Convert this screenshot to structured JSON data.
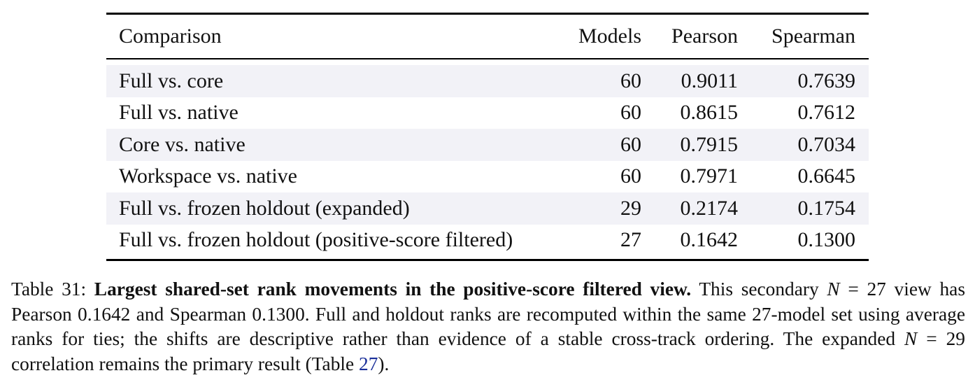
{
  "table": {
    "headers": {
      "comparison": "Comparison",
      "models": "Models",
      "pearson": "Pearson",
      "spearman": "Spearman"
    },
    "rows": [
      {
        "comparison": "Full vs. core",
        "models": "60",
        "pearson": "0.9011",
        "spearman": "0.7639"
      },
      {
        "comparison": "Full vs. native",
        "models": "60",
        "pearson": "0.8615",
        "spearman": "0.7612"
      },
      {
        "comparison": "Core vs. native",
        "models": "60",
        "pearson": "0.7915",
        "spearman": "0.7034"
      },
      {
        "comparison": "Workspace vs. native",
        "models": "60",
        "pearson": "0.7971",
        "spearman": "0.6645"
      },
      {
        "comparison": "Full vs. frozen holdout (expanded)",
        "models": "29",
        "pearson": "0.2174",
        "spearman": "0.1754"
      },
      {
        "comparison": "Full vs. frozen holdout (positive-score filtered)",
        "models": "27",
        "pearson": "0.1642",
        "spearman": "0.1300"
      }
    ]
  },
  "caption": {
    "label": "Table 31:",
    "bold_title": "Largest shared-set rank movements in the positive-score filtered view.",
    "text_1": "This secondary",
    "math_1": "N",
    "eq_1": " = 27",
    "text_2": "view has Pearson 0.1642 and Spearman 0.1300. Full and holdout ranks are recomputed within the same 27-model set using average ranks for ties; the shifts are descriptive rather than evidence of a stable cross-track ordering. The expanded",
    "math_2": "N",
    "eq_2": " = 29",
    "text_3": "correlation remains the primary result (Table",
    "ref": "27",
    "text_4": ")."
  }
}
